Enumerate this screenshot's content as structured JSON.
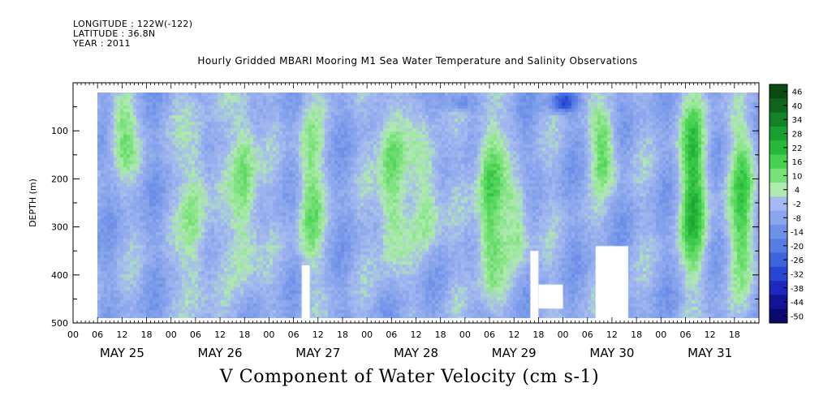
{
  "header": {
    "longitude": "LONGITUDE : 122W(-122)",
    "latitude": "LATITUDE : 36.8N",
    "year": "YEAR : 2011"
  },
  "title": "Hourly Gridded MBARI Mooring M1 Sea Water Temperature and Salinity Observations",
  "footer_label": "V Component of Water Velocity (cm s-1)",
  "chart_data": {
    "type": "heatmap",
    "title": "Hourly Gridded MBARI Mooring M1 Sea Water Temperature and Salinity Observations",
    "xlabel": "",
    "ylabel": "DEPTH (m)",
    "colorbar_label": "V Component of Water Velocity (cm s-1)",
    "y_axis": {
      "range": [
        0,
        500
      ],
      "inverted": true,
      "ticks": [
        100,
        200,
        300,
        400,
        500
      ],
      "minor_ticks": [
        50,
        150,
        250,
        350,
        450
      ]
    },
    "x_axis": {
      "day_labels": [
        "MAY 25",
        "MAY 26",
        "MAY 27",
        "MAY 28",
        "MAY 29",
        "MAY 30",
        "MAY 31"
      ],
      "hour_labels": [
        "00",
        "06",
        "12",
        "18"
      ],
      "hours_total": 168
    },
    "colorbar": {
      "ticks": [
        "46",
        "40",
        "34",
        "28",
        "22",
        "16",
        "10",
        "4",
        "-2",
        "-8",
        "-14",
        "-20",
        "-26",
        "-32",
        "-38",
        "-44",
        "-50"
      ],
      "range": [
        -50,
        50
      ]
    },
    "data_extent": {
      "start_hour": 6,
      "end_hour": 168,
      "min_depth": 20,
      "max_depth": 490
    },
    "features": [
      {
        "hour_center": 12,
        "depth_top": 20,
        "depth_bottom": 180,
        "value": 10
      },
      {
        "hour_center": 30,
        "depth_top": 60,
        "depth_bottom": 480,
        "value": 8
      },
      {
        "hour_center": 42,
        "depth_top": 20,
        "depth_bottom": 420,
        "value": 12
      },
      {
        "hour_center": 58,
        "depth_top": 60,
        "depth_bottom": 400,
        "value": 9
      },
      {
        "hour_center": 78,
        "depth_top": 20,
        "depth_bottom": 380,
        "value": 14
      },
      {
        "hour_center": 87,
        "depth_top": 100,
        "depth_bottom": 360,
        "value": 8
      },
      {
        "hour_center": 102,
        "depth_top": 60,
        "depth_bottom": 440,
        "value": 16
      },
      {
        "hour_center": 109,
        "depth_top": 200,
        "depth_bottom": 380,
        "value": 8
      },
      {
        "hour_center": 130,
        "depth_top": 60,
        "depth_bottom": 220,
        "value": 12
      },
      {
        "hour_center": 152,
        "depth_top": 40,
        "depth_bottom": 400,
        "value": 20
      },
      {
        "hour_center": 164,
        "depth_top": 80,
        "depth_bottom": 420,
        "value": 14
      },
      {
        "hour_center": 120,
        "depth_top": 20,
        "depth_bottom": 60,
        "value": -32
      },
      {
        "hour_center": 95,
        "depth_top": 20,
        "depth_bottom": 60,
        "value": -20
      }
    ],
    "gaps": [
      {
        "hour_start": 56,
        "hour_end": 58,
        "depth_start": 380,
        "depth_end": 490
      },
      {
        "hour_start": 112,
        "hour_end": 114,
        "depth_start": 350,
        "depth_end": 490
      },
      {
        "hour_start": 114,
        "hour_end": 120,
        "depth_start": 420,
        "depth_end": 470
      },
      {
        "hour_start": 128,
        "hour_end": 136,
        "depth_start": 340,
        "depth_end": 490
      }
    ],
    "grid": false,
    "legend": "right colorbar"
  }
}
